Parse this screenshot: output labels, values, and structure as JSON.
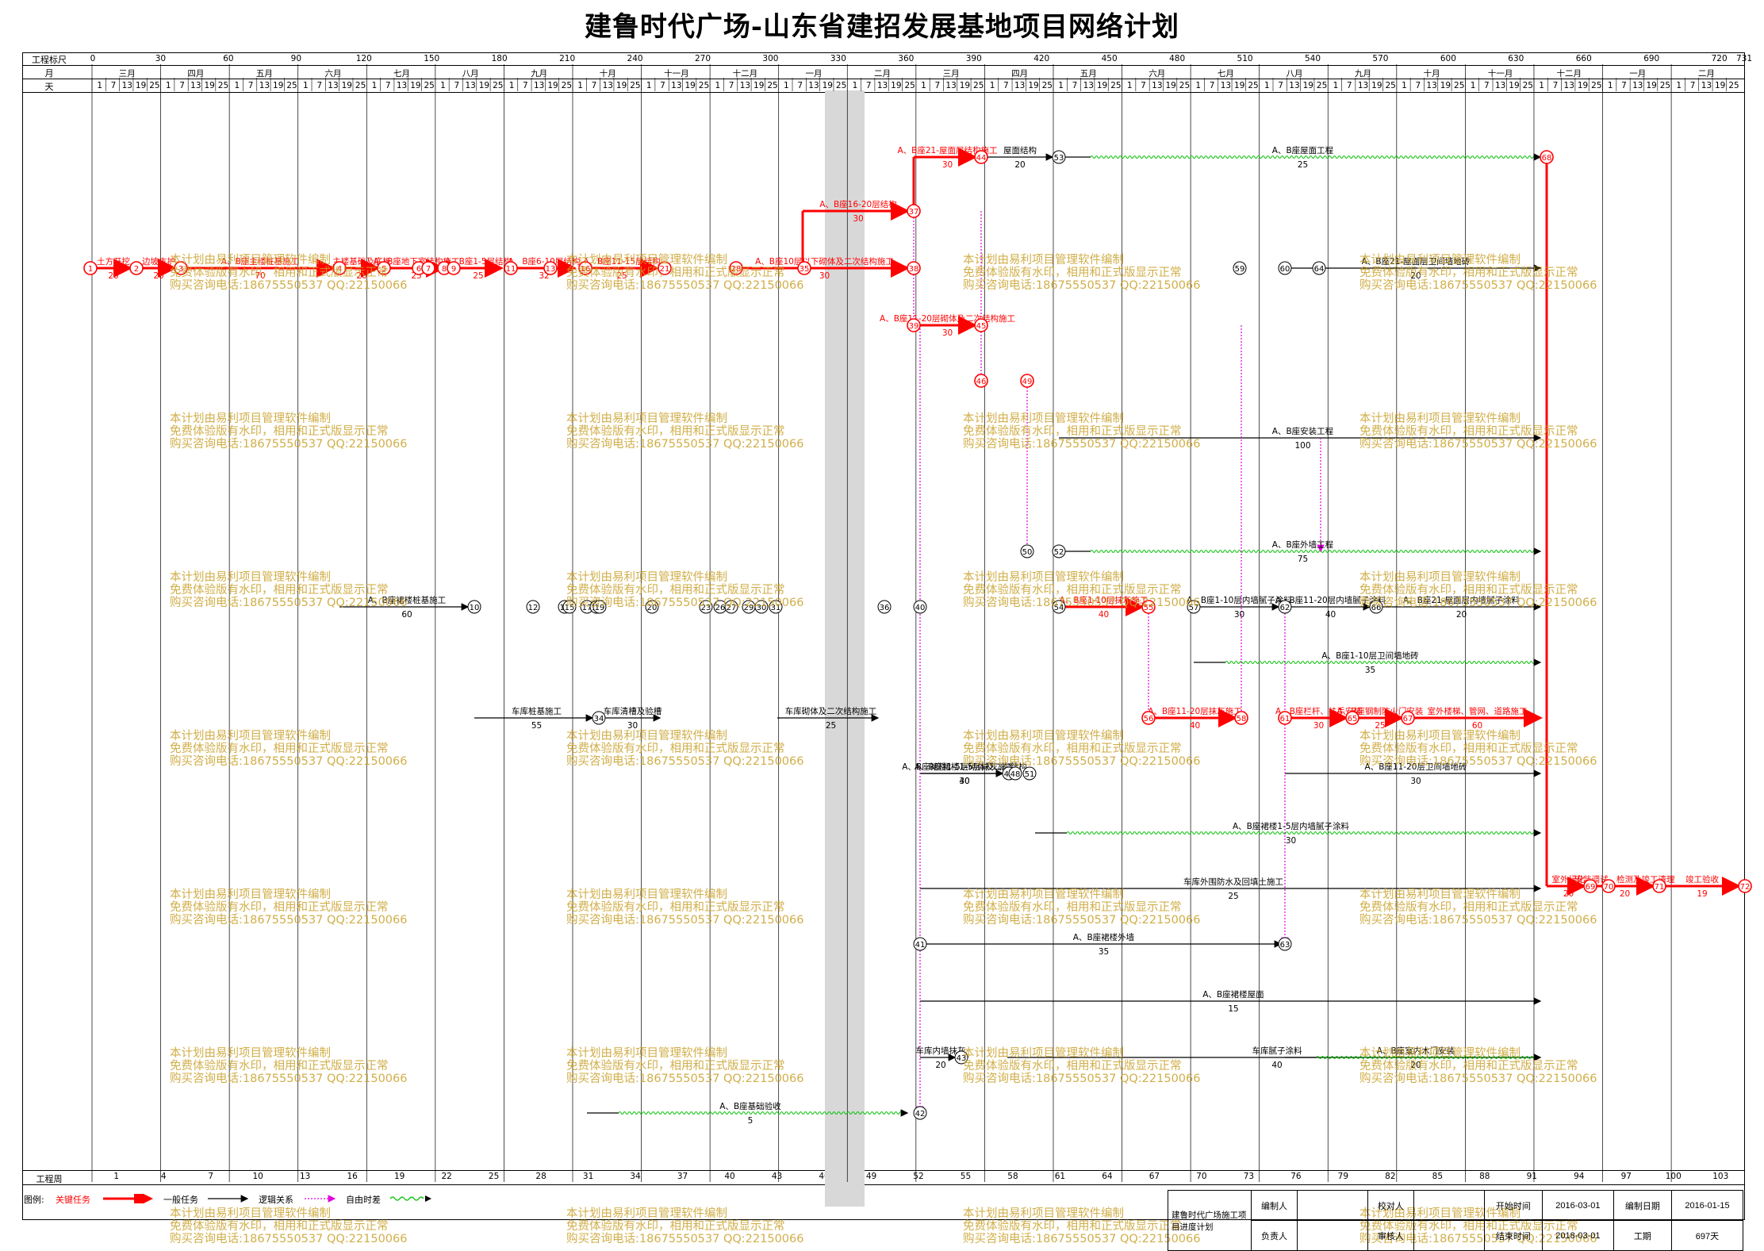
{
  "title": "建鲁时代广场-山东省建招发展基地项目网络计划",
  "header": {
    "scale_label": "工程标尺",
    "month_label": "月",
    "day_label": "天",
    "week_label": "工程周",
    "scale_ticks": [
      "0",
      "30",
      "60",
      "90",
      "120",
      "150",
      "180",
      "210",
      "240",
      "270",
      "300",
      "330",
      "360",
      "390",
      "420",
      "450",
      "480",
      "510",
      "540",
      "570",
      "600",
      "630",
      "660",
      "690",
      "720",
      "731"
    ],
    "months": [
      "三月",
      "四月",
      "五月",
      "六月",
      "七月",
      "八月",
      "九月",
      "十月",
      "十一月",
      "十二月",
      "一月",
      "二月",
      "三月",
      "四月",
      "五月",
      "六月",
      "七月",
      "八月",
      "九月",
      "十月",
      "十一月",
      "十二月",
      "一月",
      "二月"
    ],
    "days": [
      "1",
      "7",
      "13",
      "19",
      "25"
    ],
    "weeks": [
      "1",
      "4",
      "7",
      "10",
      "13",
      "16",
      "19",
      "22",
      "25",
      "28",
      "31",
      "34",
      "37",
      "40",
      "43",
      "46",
      "49",
      "52",
      "55",
      "58",
      "61",
      "64",
      "67",
      "70",
      "73",
      "76",
      "79",
      "82",
      "85",
      "88",
      "91",
      "94",
      "97",
      "100",
      "103"
    ]
  },
  "colors": {
    "critical": "#ff0000",
    "normal": "#000000",
    "logic": "#e000e0",
    "float": "#00c000",
    "watermark": "#c9a12a"
  },
  "legend": {
    "label": "图例:",
    "critical": "关键任务",
    "normal": "一般任务",
    "logic": "逻辑关系",
    "float": "自由时差"
  },
  "meta": {
    "project_name": "建鲁时代广场施工项目进度计划",
    "editor_label": "编制人",
    "checker_label": "校对人",
    "owner_label": "负责人",
    "reviewer_label": "审核人",
    "start_label": "开始时间",
    "start_value": "2016-03-01",
    "compile_label": "编制日期",
    "compile_value": "2016-01-15",
    "end_label": "结束时间",
    "end_value": "2018-03-01",
    "duration_label": "工期",
    "duration_value": "697天"
  },
  "watermark": {
    "line1": "本计划由易利项目管理软件编制",
    "line2": "免费体验版有水印，相用和正式版显示正常",
    "line3": "购买咨询电话:18675550537 QQ:22150066"
  },
  "nodes": [
    "1",
    "2",
    "3",
    "4",
    "5",
    "6",
    "7",
    "8",
    "9",
    "10",
    "11",
    "12",
    "13",
    "14",
    "15",
    "16",
    "17",
    "18",
    "19",
    "20",
    "21",
    "23",
    "26",
    "27",
    "28",
    "29",
    "30",
    "31",
    "34",
    "35",
    "36",
    "37",
    "38",
    "39",
    "40",
    "41",
    "42",
    "43",
    "44",
    "45",
    "46",
    "47",
    "48",
    "49",
    "50",
    "51",
    "52",
    "53",
    "54",
    "55",
    "56",
    "57",
    "58",
    "59",
    "60",
    "61",
    "62",
    "63",
    "64",
    "65",
    "66",
    "67",
    "68",
    "69",
    "70",
    "71",
    "72"
  ],
  "activities": [
    {
      "name": "土方开挖",
      "dur": "20",
      "type": "critical"
    },
    {
      "name": "边坡支护",
      "dur": "20",
      "type": "critical"
    },
    {
      "name": "A、B座主楼桩基施工",
      "dur": "70",
      "type": "critical"
    },
    {
      "name": "主楼基础及底板",
      "dur": "20",
      "type": "critical"
    },
    {
      "name": "A、B座地下室结构施工",
      "dur": "25",
      "type": "critical"
    },
    {
      "name": "A、B座1-5层结构",
      "dur": "25",
      "type": "critical"
    },
    {
      "name": "A、B座6-10层结构",
      "dur": "32",
      "type": "critical"
    },
    {
      "name": "A、B座11-15层结构",
      "dur": "25",
      "type": "critical"
    },
    {
      "name": "A、B座16-20层结构",
      "dur": "30",
      "type": "critical"
    },
    {
      "name": "A、B座21-屋面层结构施工",
      "dur": "30",
      "type": "critical"
    },
    {
      "name": "A、B座10层以下砌体及二次结构施工",
      "dur": "30",
      "type": "critical"
    },
    {
      "name": "A、B座11-20层砌体及二次结构施工",
      "dur": "30",
      "type": "critical"
    },
    {
      "name": "屋面结构",
      "dur": "20",
      "type": "normal"
    },
    {
      "name": "A、B座屋面工程",
      "dur": "25",
      "type": "float"
    },
    {
      "name": "A、B座21-屋面层卫间墙地砖",
      "dur": "20",
      "type": "normal"
    },
    {
      "name": "A、B座安装工程",
      "dur": "100",
      "type": "normal"
    },
    {
      "name": "A、B座外墙工程",
      "dur": "75",
      "type": "float"
    },
    {
      "name": "A、B座裙楼桩基施工",
      "dur": "60",
      "type": "normal"
    },
    {
      "name": "A、B座裙楼1-5层砌体及二次结构",
      "dur": "30",
      "type": "normal"
    },
    {
      "name": "A、B座1-10层抹灰施工",
      "dur": "40",
      "type": "critical"
    },
    {
      "name": "A、B座1-10层内墙腻子涂料",
      "dur": "30",
      "type": "normal"
    },
    {
      "name": "A、B座11-20层内墙腻子涂料",
      "dur": "40",
      "type": "normal"
    },
    {
      "name": "A、B座21-屋面层内墙腻子涂料",
      "dur": "20",
      "type": "normal"
    },
    {
      "name": "A、B座1-10层卫间墙地砖",
      "dur": "35",
      "type": "float"
    },
    {
      "name": "车库桩基施工",
      "dur": "55",
      "type": "normal"
    },
    {
      "name": "车库清槽及验槽",
      "dur": "30",
      "type": "normal"
    },
    {
      "name": "车库砌体及二次结构施工",
      "dur": "25",
      "type": "normal"
    },
    {
      "name": "A、B座11-20层抹灰施工",
      "dur": "40",
      "type": "critical"
    },
    {
      "name": "A、B座栏杆、扶手安装",
      "dur": "30",
      "type": "critical"
    },
    {
      "name": "A、B座钢制防火门安装",
      "dur": "25",
      "type": "critical"
    },
    {
      "name": "室外楼梯、管网、道路施工",
      "dur": "60",
      "type": "critical"
    },
    {
      "name": "A、B座11-20层卫间墙地砖",
      "dur": "30",
      "type": "normal"
    },
    {
      "name": "A、B座裙楼1-5层抹灰施工",
      "dur": "40",
      "type": "normal"
    },
    {
      "name": "A、B座裙楼1-5层内墙腻子涂料",
      "dur": "30",
      "type": "float"
    },
    {
      "name": "车库外围防水及回填土施工",
      "dur": "25",
      "type": "normal"
    },
    {
      "name": "A、B座裙楼外墙",
      "dur": "35",
      "type": "normal"
    },
    {
      "name": "A、B座裙楼屋面",
      "dur": "15",
      "type": "normal"
    },
    {
      "name": "车库内墙抹灰",
      "dur": "20",
      "type": "normal"
    },
    {
      "name": "车库腻子涂料",
      "dur": "40",
      "type": "normal"
    },
    {
      "name": "A、B座室内木门安装",
      "dur": "20",
      "type": "float"
    },
    {
      "name": "A、B座基础验收",
      "dur": "5",
      "type": "float"
    },
    {
      "name": "室外绿化",
      "dur": "20",
      "type": "critical"
    },
    {
      "name": "安装调试、检测及竣工清理",
      "dur": "20",
      "type": "critical"
    },
    {
      "name": "竣工验收",
      "dur": "19",
      "type": "critical"
    }
  ]
}
